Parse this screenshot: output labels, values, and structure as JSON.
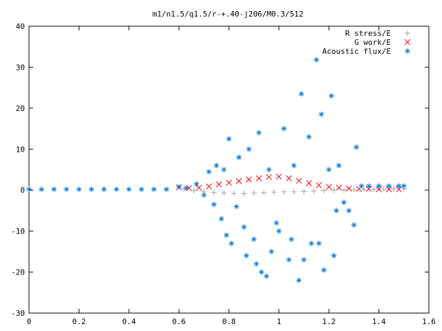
{
  "chart_data": {
    "type": "scatter",
    "title": "m1/n1.5/q1.5/r-+.40-j206/M0.3/512",
    "xlabel": "",
    "ylabel": "",
    "xlim": [
      0,
      1.6
    ],
    "ylim": [
      -30,
      40
    ],
    "xticks": [
      "0",
      "0.2",
      "0.4",
      "0.6",
      "0.8",
      "1",
      "1.2",
      "1.4",
      "1.6"
    ],
    "yticks": [
      "40",
      "30",
      "20",
      "10",
      "0",
      "-10",
      "-20",
      "-30"
    ],
    "grid": false,
    "legend_position": "top-right",
    "series": [
      {
        "name": "R stress/E",
        "marker": "plus",
        "color": "#a0a0a0",
        "points": [
          [
            0.62,
            0.3
          ],
          [
            0.66,
            -0.1
          ],
          [
            0.7,
            -0.4
          ],
          [
            0.74,
            -0.6
          ],
          [
            0.78,
            -0.7
          ],
          [
            0.82,
            -0.8
          ],
          [
            0.86,
            -0.8
          ],
          [
            0.9,
            -0.7
          ],
          [
            0.94,
            -0.6
          ],
          [
            0.98,
            -0.5
          ],
          [
            1.02,
            -0.4
          ],
          [
            1.06,
            -0.4
          ],
          [
            1.1,
            -0.3
          ],
          [
            1.14,
            -0.2
          ],
          [
            1.18,
            -0.1
          ],
          [
            1.22,
            0
          ],
          [
            1.26,
            0
          ],
          [
            1.3,
            0.1
          ],
          [
            1.34,
            0.1
          ],
          [
            1.38,
            0.2
          ],
          [
            1.42,
            0.2
          ],
          [
            1.46,
            0.3
          ],
          [
            1.5,
            0.3
          ]
        ]
      },
      {
        "name": "G work/E",
        "marker": "cross",
        "color": "#ff0000",
        "points": [
          [
            0.6,
            0.7
          ],
          [
            0.64,
            0.5
          ],
          [
            0.68,
            0.6
          ],
          [
            0.72,
            0.9
          ],
          [
            0.76,
            1.4
          ],
          [
            0.8,
            1.8
          ],
          [
            0.84,
            2.2
          ],
          [
            0.88,
            2.6
          ],
          [
            0.92,
            2.9
          ],
          [
            0.96,
            3.2
          ],
          [
            1.0,
            3.3
          ],
          [
            1.04,
            2.9
          ],
          [
            1.08,
            2.3
          ],
          [
            1.12,
            1.7
          ],
          [
            1.16,
            1.2
          ],
          [
            1.2,
            0.8
          ],
          [
            1.24,
            0.6
          ],
          [
            1.28,
            0.4
          ],
          [
            1.32,
            0.3
          ],
          [
            1.36,
            0.3
          ],
          [
            1.4,
            0.2
          ],
          [
            1.44,
            0.2
          ],
          [
            1.48,
            0.2
          ]
        ]
      },
      {
        "name": "Acoustic flux/E",
        "marker": "star",
        "color": "#0a7ad8",
        "points": [
          [
            0.0,
            0.2
          ],
          [
            0.05,
            0.2
          ],
          [
            0.1,
            0.2
          ],
          [
            0.15,
            0.2
          ],
          [
            0.2,
            0.2
          ],
          [
            0.25,
            0.2
          ],
          [
            0.3,
            0.2
          ],
          [
            0.35,
            0.2
          ],
          [
            0.4,
            0.2
          ],
          [
            0.45,
            0.2
          ],
          [
            0.5,
            0.2
          ],
          [
            0.55,
            0.2
          ],
          [
            0.6,
            0.8
          ],
          [
            0.63,
            0.5
          ],
          [
            0.67,
            1.5
          ],
          [
            0.7,
            -1.2
          ],
          [
            0.72,
            4.5
          ],
          [
            0.74,
            -3.5
          ],
          [
            0.75,
            6.0
          ],
          [
            0.77,
            -7.0
          ],
          [
            0.78,
            5.0
          ],
          [
            0.79,
            -11
          ],
          [
            0.8,
            12.5
          ],
          [
            0.81,
            -13
          ],
          [
            0.83,
            -4
          ],
          [
            0.84,
            8
          ],
          [
            0.86,
            -9
          ],
          [
            0.87,
            -16
          ],
          [
            0.88,
            10
          ],
          [
            0.9,
            -12
          ],
          [
            0.91,
            -18
          ],
          [
            0.92,
            14
          ],
          [
            0.93,
            -20
          ],
          [
            0.95,
            -21
          ],
          [
            0.96,
            5
          ],
          [
            0.97,
            -15
          ],
          [
            0.99,
            -8
          ],
          [
            1.0,
            -10
          ],
          [
            1.02,
            15
          ],
          [
            1.04,
            -17
          ],
          [
            1.05,
            -12
          ],
          [
            1.06,
            6
          ],
          [
            1.08,
            -22
          ],
          [
            1.09,
            23.5
          ],
          [
            1.1,
            -17
          ],
          [
            1.12,
            13
          ],
          [
            1.13,
            -13
          ],
          [
            1.15,
            31.8
          ],
          [
            1.16,
            -13
          ],
          [
            1.17,
            18.5
          ],
          [
            1.18,
            -19.5
          ],
          [
            1.2,
            5
          ],
          [
            1.21,
            23
          ],
          [
            1.22,
            -16
          ],
          [
            1.23,
            -5
          ],
          [
            1.24,
            6
          ],
          [
            1.26,
            -3
          ],
          [
            1.28,
            -5
          ],
          [
            1.3,
            -8.5
          ],
          [
            1.31,
            10.5
          ],
          [
            1.33,
            1.0
          ],
          [
            1.36,
            1.0
          ],
          [
            1.4,
            1.0
          ],
          [
            1.44,
            1.0
          ],
          [
            1.48,
            1.0
          ],
          [
            1.5,
            1.0
          ]
        ]
      }
    ]
  }
}
